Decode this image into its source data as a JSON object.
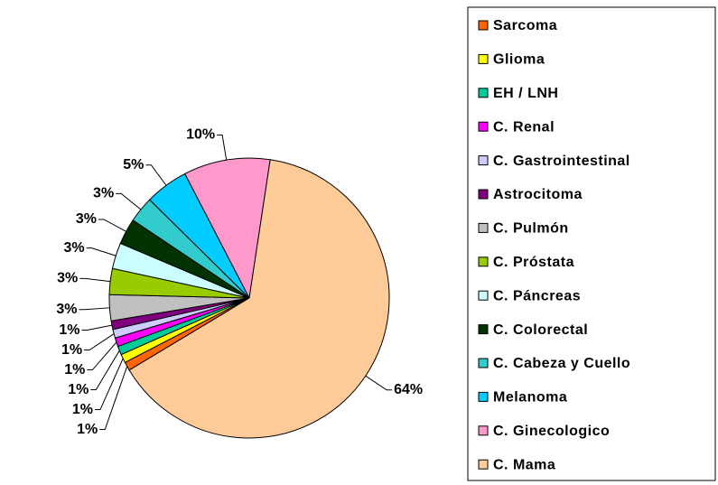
{
  "chart_data": {
    "type": "pie",
    "categories": [
      "Sarcoma",
      "Glioma",
      "EH / LNH",
      "C. Renal",
      "C. Gastrointestinal",
      "Astrocitoma",
      "C. Pulmón",
      "C. Próstata",
      "C. Páncreas",
      "C. Colorectal",
      "C. Cabeza y Cuello",
      "Melanoma",
      "C. Ginecologico",
      "C. Mama"
    ],
    "values": [
      1,
      1,
      1,
      1,
      1,
      1,
      3,
      3,
      3,
      3,
      3,
      5,
      10,
      64
    ],
    "value_labels": [
      "1%",
      "1%",
      "1%",
      "1%",
      "1%",
      "1%",
      "3%",
      "3%",
      "3%",
      "3%",
      "3%",
      "5%",
      "10%",
      "64%"
    ],
    "colors": [
      "#ff6600",
      "#ffff00",
      "#00cc99",
      "#ff00ff",
      "#ccccff",
      "#800080",
      "#c0c0c0",
      "#99cc00",
      "#ccffff",
      "#003300",
      "#33cccc",
      "#00ccff",
      "#ff99cc",
      "#ffcc99"
    ],
    "legend": "right"
  }
}
